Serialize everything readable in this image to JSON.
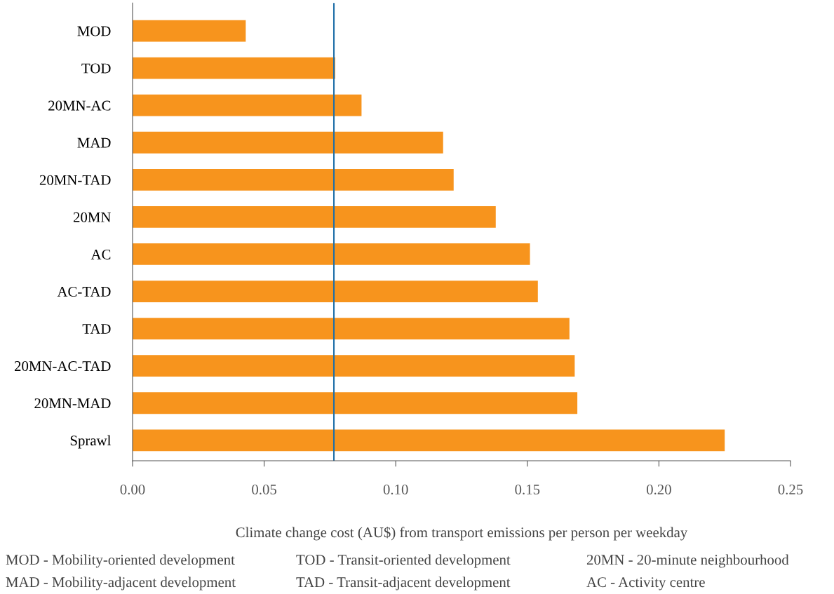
{
  "chart_data": {
    "type": "bar",
    "orientation": "horizontal",
    "categories": [
      "MOD",
      "TOD",
      "20MN-AC",
      "MAD",
      "20MN-TAD",
      "20MN",
      "AC",
      "AC-TAD",
      "TAD",
      "20MN-AC-TAD",
      "20MN-MAD",
      "Sprawl"
    ],
    "values": [
      0.043,
      0.077,
      0.087,
      0.118,
      0.122,
      0.138,
      0.151,
      0.154,
      0.166,
      0.168,
      0.169,
      0.225
    ],
    "color": "#f7941d",
    "xlabel": "Climate change cost (AU$) from transport emissions per person per weekday",
    "xlim": [
      0,
      0.25
    ],
    "xticks": [
      {
        "value": 0,
        "label": "0.00"
      },
      {
        "value": 0.05,
        "label": "0.05"
      },
      {
        "value": 0.1,
        "label": "0.10"
      },
      {
        "value": 0.15,
        "label": "0.15"
      },
      {
        "value": 0.2,
        "label": "0.20"
      },
      {
        "value": 0.25,
        "label": "0.25"
      }
    ],
    "ref_lines": [
      {
        "axis": "x",
        "value": 0.0765,
        "color": "#1f6fa8"
      }
    ],
    "grid": false,
    "legend": false,
    "annotations": [
      "MOD - Mobility-oriented development",
      "TOD - Transit-oriented development",
      "20MN - 20-minute neighbourhood",
      "MAD - Mobility-adjacent development",
      "TAD - Transit-adjacent development",
      "AC - Activity centre"
    ]
  }
}
